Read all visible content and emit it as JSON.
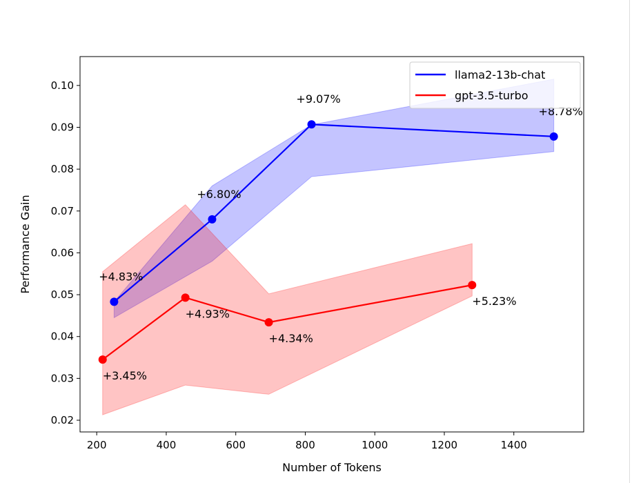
{
  "chart_data": {
    "type": "line",
    "title": "",
    "xlabel": "Number of Tokens",
    "ylabel": "Performance Gain",
    "xlim": [
      152,
      1601
    ],
    "ylim": [
      0.0172,
      0.1069
    ],
    "xticks": [
      200,
      400,
      600,
      800,
      1000,
      1200,
      1400
    ],
    "xtick_labels": [
      "200",
      "400",
      "600",
      "800",
      "1000",
      "1200",
      "1400"
    ],
    "yticks": [
      0.02,
      0.03,
      0.04,
      0.05,
      0.06,
      0.07,
      0.08,
      0.09,
      0.1
    ],
    "ytick_labels": [
      "0.02",
      "0.03",
      "0.04",
      "0.05",
      "0.06",
      "0.07",
      "0.08",
      "0.09",
      "0.10"
    ],
    "grid": false,
    "legend_position": "top-right",
    "series": [
      {
        "name": "llama2-13b-chat",
        "color": "#0000ff",
        "x": [
          250,
          532,
          818,
          1515
        ],
        "y": [
          0.0483,
          0.068,
          0.0907,
          0.0878
        ],
        "band_upper": [
          0.0483,
          0.076,
          0.0906,
          0.1015
        ],
        "band_lower": [
          0.0445,
          0.058,
          0.0782,
          0.0842
        ],
        "labels": [
          "+4.83%",
          "+6.80%",
          "+9.07%",
          "+8.78%"
        ],
        "label_placement": "above"
      },
      {
        "name": "gpt-3.5-turbo",
        "color": "#ff0000",
        "x": [
          217,
          455,
          695,
          1280
        ],
        "y": [
          0.0345,
          0.0493,
          0.0434,
          0.0523
        ],
        "band_upper": [
          0.0555,
          0.0715,
          0.0502,
          0.0622
        ],
        "band_lower": [
          0.0213,
          0.0284,
          0.0262,
          0.0497
        ],
        "labels": [
          "+3.45%",
          "+4.93%",
          "+4.34%",
          "+5.23%"
        ],
        "label_placement": "below"
      }
    ]
  }
}
